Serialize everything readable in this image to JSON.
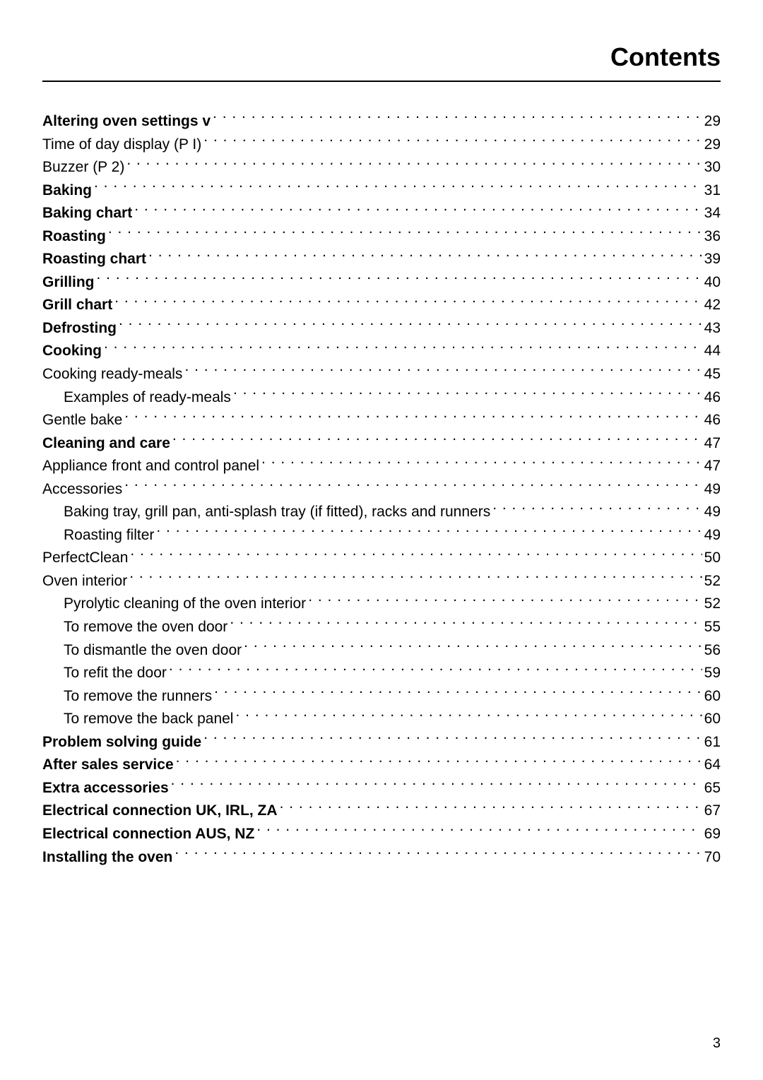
{
  "title": "Contents",
  "page_number": "3",
  "entries": [
    {
      "label": "Altering oven settings",
      "suffix": " v",
      "page": "29",
      "bold": true,
      "indent": 0
    },
    {
      "label": "Time of day display (P I)",
      "page": "29",
      "bold": false,
      "indent": 0
    },
    {
      "label": "Buzzer (P 2)",
      "page": "30",
      "bold": false,
      "indent": 0
    },
    {
      "label": "Baking",
      "page": "31",
      "bold": true,
      "indent": 0
    },
    {
      "label": "Baking chart",
      "page": "34",
      "bold": true,
      "indent": 0
    },
    {
      "label": "Roasting",
      "page": "36",
      "bold": true,
      "indent": 0
    },
    {
      "label": "Roasting chart",
      "page": "39",
      "bold": true,
      "indent": 0
    },
    {
      "label": "Grilling",
      "page": "40",
      "bold": true,
      "indent": 0
    },
    {
      "label": "Grill chart",
      "page": "42",
      "bold": true,
      "indent": 0
    },
    {
      "label": "Defrosting",
      "page": "43",
      "bold": true,
      "indent": 0
    },
    {
      "label": "Cooking",
      "page": "44",
      "bold": true,
      "indent": 0
    },
    {
      "label": "Cooking ready-meals",
      "page": "45",
      "bold": false,
      "indent": 0
    },
    {
      "label": "Examples of ready-meals",
      "page": "46",
      "bold": false,
      "indent": 1
    },
    {
      "label": "Gentle bake",
      "page": "46",
      "bold": false,
      "indent": 0
    },
    {
      "label": "Cleaning and care",
      "page": "47",
      "bold": true,
      "indent": 0
    },
    {
      "label": "Appliance front and control panel",
      "page": "47",
      "bold": false,
      "indent": 0
    },
    {
      "label": "Accessories",
      "page": "49",
      "bold": false,
      "indent": 0
    },
    {
      "label": "Baking tray, grill pan, anti-splash tray (if fitted), racks and runners",
      "page": "49",
      "bold": false,
      "indent": 1
    },
    {
      "label": "Roasting filter",
      "page": "49",
      "bold": false,
      "indent": 1
    },
    {
      "label": "PerfectClean",
      "page": "50",
      "bold": false,
      "indent": 0
    },
    {
      "label": "Oven interior",
      "page": "52",
      "bold": false,
      "indent": 0
    },
    {
      "label": "Pyrolytic cleaning of the oven interior",
      "page": "52",
      "bold": false,
      "indent": 1
    },
    {
      "label": "To remove the oven door",
      "page": "55",
      "bold": false,
      "indent": 1
    },
    {
      "label": "To dismantle the oven door",
      "page": "56",
      "bold": false,
      "indent": 1
    },
    {
      "label": "To refit the door",
      "page": "59",
      "bold": false,
      "indent": 1
    },
    {
      "label": "To remove the runners",
      "page": "60",
      "bold": false,
      "indent": 1
    },
    {
      "label": "To remove the back panel",
      "page": "60",
      "bold": false,
      "indent": 1
    },
    {
      "label": "Problem solving guide",
      "page": "61",
      "bold": true,
      "indent": 0
    },
    {
      "label": "After sales service",
      "page": "64",
      "bold": true,
      "indent": 0
    },
    {
      "label": "Extra accessories",
      "page": "65",
      "bold": true,
      "indent": 0
    },
    {
      "label": "Electrical connection UK, IRL, ZA",
      "page": "67",
      "bold": true,
      "indent": 0
    },
    {
      "label": "Electrical connection AUS, NZ",
      "page": "69",
      "bold": true,
      "indent": 0
    },
    {
      "label": "Installing the oven",
      "page": "70",
      "bold": true,
      "indent": 0
    }
  ]
}
